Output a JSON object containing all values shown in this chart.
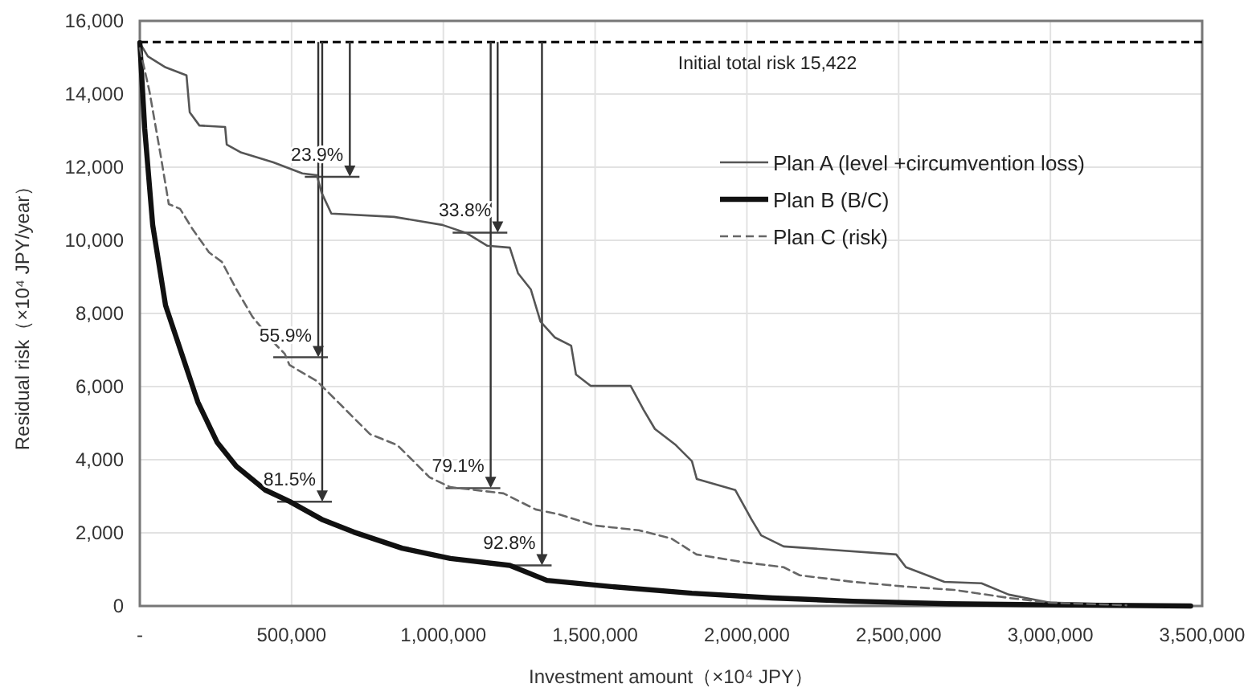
{
  "chart_data": {
    "type": "line",
    "xlabel": "Investment amount（×10⁴ JPY）",
    "ylabel": "Residual risk（×10⁴ JPY/year）",
    "xlim": [
      0,
      3500000
    ],
    "xticks": [
      {
        "value": 0,
        "label": "-"
      },
      {
        "value": 500000,
        "label": "500,000"
      },
      {
        "value": 1000000,
        "label": "1,000,000"
      },
      {
        "value": 1500000,
        "label": "1,500,000"
      },
      {
        "value": 2000000,
        "label": "2,000,000"
      },
      {
        "value": 2500000,
        "label": "2,500,000"
      },
      {
        "value": 3000000,
        "label": "3,000,000"
      },
      {
        "value": 3500000,
        "label": "3,500,000"
      }
    ],
    "ylim": [
      0,
      16000
    ],
    "yticks": [
      {
        "value": 0,
        "label": "0"
      },
      {
        "value": 2000,
        "label": "2,000"
      },
      {
        "value": 4000,
        "label": "4,000"
      },
      {
        "value": 6000,
        "label": "6,000"
      },
      {
        "value": 8000,
        "label": "8,000"
      },
      {
        "value": 10000,
        "label": "10,000"
      },
      {
        "value": 12000,
        "label": "12,000"
      },
      {
        "value": 14000,
        "label": "14,000"
      },
      {
        "value": 16000,
        "label": "16,000"
      }
    ],
    "grid": true,
    "legend": "right",
    "marker": "none",
    "series": [
      {
        "name": "Plan A (level +circumvention loss)",
        "color": "#555555",
        "line_style": "solid",
        "x": [
          0,
          26500,
          84800,
          153800,
          164400,
          196200,
          281000,
          286300,
          334000,
          440000,
          535500,
          583000,
          599000,
          631000,
          838000,
          997000,
          1076000,
          1145000,
          1219000,
          1246000,
          1288000,
          1320000,
          1368000,
          1421000,
          1437000,
          1485000,
          1617000,
          1660000,
          1697000,
          1766000,
          1819000,
          1835000,
          1962000,
          2015000,
          2047000,
          2121000,
          2492000,
          2524000,
          2651000,
          2773000,
          2863000,
          3001000,
          3250000
        ],
        "values": [
          15400,
          15030,
          14730,
          14510,
          13500,
          13140,
          13100,
          12620,
          12400,
          12130,
          11830,
          11780,
          11300,
          10730,
          10640,
          10420,
          10200,
          9850,
          9800,
          9100,
          8660,
          7780,
          7340,
          7120,
          6330,
          6020,
          6020,
          5360,
          4840,
          4400,
          3960,
          3470,
          3170,
          2370,
          1930,
          1630,
          1410,
          1060,
          660,
          620,
          310,
          90,
          40
        ]
      },
      {
        "name": "Plan B (B/C)",
        "color": "#111111",
        "line_style": "solid",
        "x": [
          0,
          16000,
          42400,
          84800,
          137900,
          190900,
          254500,
          318100,
          413600,
          493100,
          599100,
          705200,
          864200,
          1023000,
          1219000,
          1341000,
          1553000,
          1819000,
          2084000,
          2349000,
          2667000,
          3000000,
          3462000
        ],
        "values": [
          15400,
          13060,
          10420,
          8220,
          6900,
          5580,
          4480,
          3820,
          3170,
          2860,
          2370,
          2020,
          1580,
          1300,
          1110,
          700,
          530,
          350,
          220,
          130,
          60,
          30,
          0
        ]
      },
      {
        "name": "Plan C (risk)",
        "color": "#666666",
        "line_style": "dashed",
        "x": [
          0,
          31800,
          68900,
          95400,
          132600,
          175000,
          228000,
          270400,
          318100,
          371100,
          440100,
          477200,
          493100,
          583200,
          668100,
          758200,
          848300,
          954400,
          1023000,
          1198000,
          1304000,
          1379000,
          1500000,
          1644000,
          1750000,
          1834000,
          1994000,
          2121000,
          2174000,
          2349000,
          2524000,
          2683000,
          2863000,
          3001000,
          3250000
        ],
        "values": [
          15250,
          14070,
          12310,
          10990,
          10860,
          10290,
          9670,
          9410,
          8660,
          7910,
          7210,
          6900,
          6590,
          6150,
          5450,
          4700,
          4400,
          3520,
          3250,
          3080,
          2640,
          2510,
          2200,
          2070,
          1850,
          1410,
          1190,
          1060,
          840,
          660,
          530,
          440,
          220,
          90,
          20
        ]
      }
    ],
    "ref_lines": [
      {
        "axis": "y",
        "value": 15422,
        "label": "Initial total risk  15,422",
        "color": "#111111",
        "line_style": "dashed"
      }
    ],
    "annotations": [
      {
        "text": "23.9%",
        "x": 586000,
        "y": 11736
      },
      {
        "text": "55.9%",
        "x": 482000,
        "y": 6801
      },
      {
        "text": "81.5%",
        "x": 495000,
        "y": 2853
      },
      {
        "text": "33.8%",
        "x": 1073000,
        "y": 10209
      },
      {
        "text": "79.1%",
        "x": 1050000,
        "y": 3223
      },
      {
        "text": "92.8%",
        "x": 1219000,
        "y": 1110
      }
    ]
  }
}
